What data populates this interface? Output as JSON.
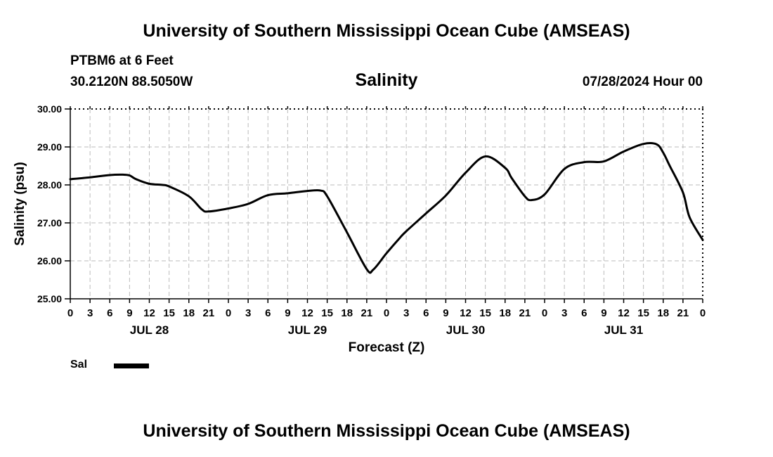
{
  "header": {
    "title": "University of Southern Mississippi Ocean Cube (AMSEAS)",
    "station": "PTBM6 at 6 Feet",
    "coords": "30.2120N  88.5050W",
    "parameter": "Salinity",
    "datetime": "07/28/2024 Hour 00"
  },
  "footer": {
    "title": "University of Southern Mississippi Ocean Cube (AMSEAS)"
  },
  "legend": {
    "label": "Sal"
  },
  "colors": {
    "line": "#000000",
    "grid": "#bbbbbb"
  },
  "chart_data": {
    "type": "line",
    "title": "Salinity",
    "xlabel": "Forecast (Z)",
    "ylabel": "Salinity (psu)",
    "ylim": [
      25.0,
      30.0
    ],
    "xlim": [
      0,
      96
    ],
    "y_ticks": [
      "25.00",
      "26.00",
      "27.00",
      "28.00",
      "29.00",
      "30.00"
    ],
    "x_tick_labels": [
      "0",
      "3",
      "6",
      "9",
      "12",
      "15",
      "18",
      "21",
      "0",
      "3",
      "6",
      "9",
      "12",
      "15",
      "18",
      "21",
      "0",
      "3",
      "6",
      "9",
      "12",
      "15",
      "18",
      "21",
      "0",
      "3",
      "6",
      "9",
      "12",
      "15",
      "18",
      "21",
      "0"
    ],
    "day_labels": [
      {
        "label": "JUL 28",
        "hour": 12
      },
      {
        "label": "JUL 29",
        "hour": 36
      },
      {
        "label": "JUL 30",
        "hour": 60
      },
      {
        "label": "JUL 31",
        "hour": 84
      }
    ],
    "grid": true,
    "series": [
      {
        "name": "Sal",
        "x": [
          0,
          3,
          6,
          8,
          9,
          10,
          12,
          14,
          15,
          18,
          20,
          21,
          24,
          27,
          30,
          33,
          36,
          38,
          39,
          42,
          45,
          46,
          48,
          50,
          51,
          54,
          57,
          60,
          63,
          66,
          67,
          69,
          70,
          72,
          75,
          78,
          81,
          84,
          87,
          89,
          90,
          91,
          93,
          94,
          96
        ],
        "values": [
          28.15,
          28.2,
          28.26,
          28.27,
          28.25,
          28.15,
          28.03,
          28.0,
          27.96,
          27.7,
          27.35,
          27.3,
          27.38,
          27.5,
          27.73,
          27.78,
          27.84,
          27.85,
          27.7,
          26.75,
          25.78,
          25.77,
          26.2,
          26.6,
          26.78,
          27.25,
          27.72,
          28.32,
          28.75,
          28.45,
          28.18,
          27.7,
          27.6,
          27.75,
          28.42,
          28.6,
          28.62,
          28.88,
          29.08,
          29.07,
          28.85,
          28.5,
          27.8,
          27.15,
          26.55
        ]
      }
    ]
  }
}
